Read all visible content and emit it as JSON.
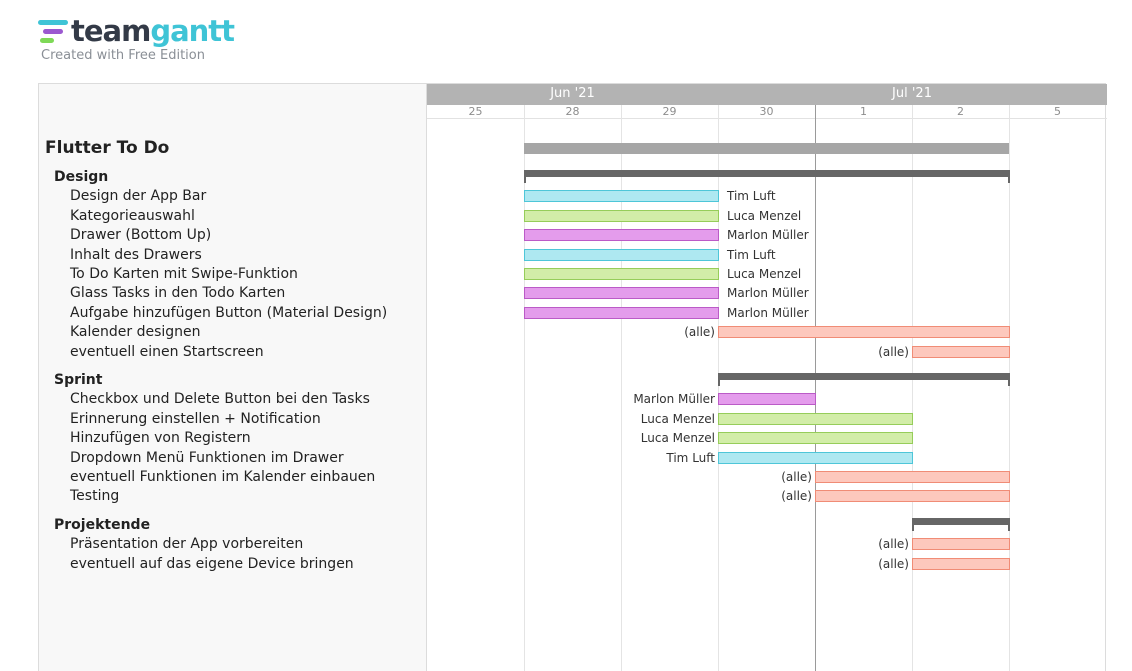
{
  "logo": {
    "name_part1": "team",
    "name_part2": "gantt",
    "subtitle": "Created with Free Edition"
  },
  "timeline": {
    "months": [
      {
        "label": "Jun '21",
        "col": 1.5
      },
      {
        "label": "Jul '21",
        "col": 5
      }
    ],
    "days": [
      "25",
      "28",
      "29",
      "30",
      "1",
      "2",
      "5"
    ],
    "today_col": 4
  },
  "project": {
    "title": "Flutter To Do",
    "start": 1,
    "end": 5
  },
  "groups": [
    {
      "name": "Design",
      "start": 1,
      "end": 5,
      "tasks": [
        {
          "name": "Design der App Bar",
          "start": 1,
          "end": 2,
          "color": "cyan",
          "assignee": "Tim Luft",
          "label_side": "right"
        },
        {
          "name": "Kategorieauswahl",
          "start": 1,
          "end": 2,
          "color": "green",
          "assignee": "Luca Menzel",
          "label_side": "right"
        },
        {
          "name": "Drawer (Bottom Up)",
          "start": 1,
          "end": 2,
          "color": "purple",
          "assignee": "Marlon Müller",
          "label_side": "right"
        },
        {
          "name": "Inhalt des Drawers",
          "start": 1,
          "end": 2,
          "color": "cyan",
          "assignee": "Tim Luft",
          "label_side": "right"
        },
        {
          "name": "To Do Karten mit Swipe-Funktion",
          "start": 1,
          "end": 2,
          "color": "green",
          "assignee": "Luca Menzel",
          "label_side": "right"
        },
        {
          "name": "Glass Tasks in den Todo Karten",
          "start": 1,
          "end": 2,
          "color": "purple",
          "assignee": "Marlon Müller",
          "label_side": "right"
        },
        {
          "name": "Aufgabe hinzufügen Button (Material Design)",
          "start": 1,
          "end": 2,
          "color": "purple",
          "assignee": "Marlon Müller",
          "label_side": "right"
        },
        {
          "name": "Kalender designen",
          "start": 3,
          "end": 5,
          "color": "salmon",
          "assignee": "(alle)",
          "label_side": "left"
        },
        {
          "name": "eventuell einen Startscreen",
          "start": 5,
          "end": 5,
          "color": "salmon",
          "assignee": "(alle)",
          "label_side": "left"
        }
      ]
    },
    {
      "name": "Sprint",
      "start": 3,
      "end": 5,
      "tasks": [
        {
          "name": "Checkbox und Delete Button bei den Tasks",
          "start": 3,
          "end": 3,
          "color": "purple",
          "assignee": "Marlon Müller",
          "label_side": "left"
        },
        {
          "name": "Erinnerung einstellen + Notification",
          "start": 3,
          "end": 4,
          "color": "green",
          "assignee": "Luca Menzel",
          "label_side": "left"
        },
        {
          "name": "Hinzufügen von Registern",
          "start": 3,
          "end": 4,
          "color": "green",
          "assignee": "Luca Menzel",
          "label_side": "left"
        },
        {
          "name": "Dropdown Menü Funktionen im Drawer",
          "start": 3,
          "end": 4,
          "color": "cyan",
          "assignee": "Tim Luft",
          "label_side": "left"
        },
        {
          "name": "eventuell Funktionen im Kalender einbauen",
          "start": 4,
          "end": 5,
          "color": "salmon",
          "assignee": "(alle)",
          "label_side": "left"
        },
        {
          "name": "Testing",
          "start": 4,
          "end": 5,
          "color": "salmon",
          "assignee": "(alle)",
          "label_side": "left"
        }
      ]
    },
    {
      "name": "Projektende",
      "start": 5,
      "end": 5,
      "tasks": [
        {
          "name": "Präsentation der App vorbereiten",
          "start": 5,
          "end": 5,
          "color": "salmon",
          "assignee": "(alle)",
          "label_side": "left"
        },
        {
          "name": "eventuell auf das eigene Device bringen",
          "start": 5,
          "end": 5,
          "color": "salmon",
          "assignee": "(alle)",
          "label_side": "left"
        }
      ]
    }
  ]
}
